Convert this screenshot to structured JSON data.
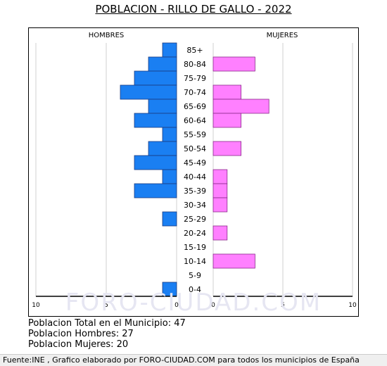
{
  "title": "POBLACION - RILLO DE GALLO - 2022",
  "watermark": "FORO-CIUDAD.COM",
  "stats": {
    "total": "Poblacion Total en el Municipio: 47",
    "men": "Poblacion Hombres: 27",
    "women": "Poblacion Mujeres: 20"
  },
  "footer": "Fuente:INE , Grafico elaborado por FORO-CIUDAD.COM para todos los municipios de España",
  "colors": {
    "men": "#1a7ff2",
    "women": "#ff80ff"
  },
  "chart_data": {
    "type": "bar",
    "orientation": "horizontal-pyramid",
    "categories": [
      "85+",
      "80-84",
      "75-79",
      "70-74",
      "65-69",
      "60-64",
      "55-59",
      "50-54",
      "45-49",
      "40-44",
      "35-39",
      "30-34",
      "25-29",
      "20-24",
      "15-19",
      "10-14",
      "5-9",
      "0-4"
    ],
    "series": [
      {
        "name": "HOMBRES",
        "values": [
          1,
          2,
          3,
          4,
          2,
          3,
          1,
          2,
          3,
          1,
          3,
          0,
          1,
          0,
          0,
          0,
          0,
          1
        ]
      },
      {
        "name": "MUJERES",
        "values": [
          0,
          3,
          0,
          2,
          4,
          2,
          0,
          2,
          0,
          1,
          1,
          1,
          0,
          1,
          0,
          3,
          0,
          0
        ]
      }
    ],
    "xlim": [
      0,
      10
    ],
    "left_ticks": [
      "10",
      "5",
      "0"
    ],
    "right_ticks": [
      "0",
      "5",
      "10"
    ],
    "grid": true
  }
}
